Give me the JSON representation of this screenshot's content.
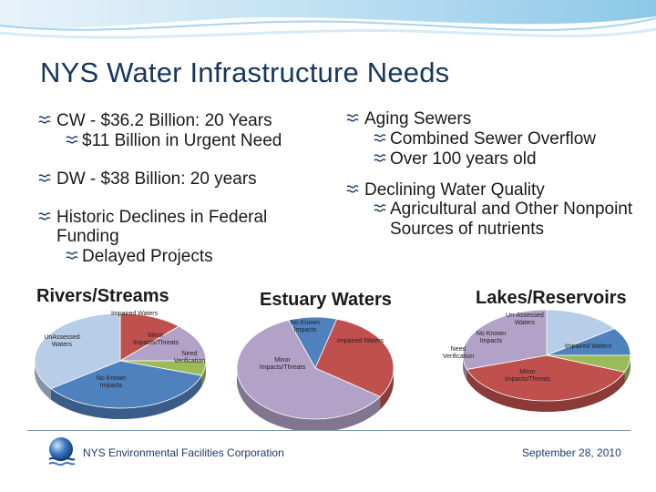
{
  "title": "NYS Water Infrastructure Needs",
  "left_column": {
    "items": [
      {
        "label": "CW - $36.2 Billion: 20 Years",
        "sub": [
          "$11 Billion in Urgent Need"
        ]
      },
      {
        "label": "DW - $38 Billion: 20 years",
        "sub": []
      },
      {
        "label": "Historic Declines in Federal Funding",
        "sub": [
          "Delayed Projects"
        ]
      }
    ]
  },
  "right_column": {
    "items": [
      {
        "label": "Aging Sewers",
        "sub": [
          "Combined Sewer Overflow",
          "Over 100 years old"
        ]
      },
      {
        "label": "Declining Water Quality",
        "sub": [
          "Agricultural and Other Nonpoint Sources of nutrients"
        ]
      }
    ]
  },
  "charts": {
    "rivers": {
      "title": "Rivers/Streams",
      "labels": {
        "impaired": "Impaired Waters",
        "minor": "Minor Impacts/Threats",
        "need": "Need Verification",
        "noknown": "No Known Impacts",
        "unassessed": "UnAssessed Waters"
      }
    },
    "estuary": {
      "title": "Estuary Waters",
      "labels": {
        "noknown": "No Known Impacts",
        "impaired": "Impaired Waters",
        "minor": "Minor Impacts/Threats"
      }
    },
    "lakes": {
      "title": "Lakes/Reservoirs",
      "labels": {
        "unassessed": "Un-Assessed Waters",
        "noknown": "No Known Impacts",
        "need": "Need Verification",
        "impaired": "Impaired Waters",
        "minor": "Minor Impacts/Threats"
      }
    }
  },
  "chart_data": [
    {
      "type": "pie",
      "title": "Rivers/Streams",
      "categories": [
        "Impaired Waters",
        "Minor Impacts/Threats",
        "Need Verification",
        "No Known Impacts",
        "UnAssessed Waters"
      ],
      "values": [
        12,
        13,
        5,
        35,
        35
      ]
    },
    {
      "type": "pie",
      "title": "Estuary Waters",
      "categories": [
        "No Known Impacts",
        "Impaired Waters",
        "Minor Impacts/Threats"
      ],
      "values": [
        10,
        30,
        60
      ]
    },
    {
      "type": "pie",
      "title": "Lakes/Reservoirs",
      "categories": [
        "Un-Assessed Waters",
        "No Known Impacts",
        "Need Verification",
        "Impaired Waters",
        "Minor Impacts/Threats"
      ],
      "values": [
        15,
        10,
        6,
        39,
        30
      ]
    }
  ],
  "footer": {
    "org": "NYS Environmental Facilities Corporation",
    "date": "September 28, 2010"
  },
  "colors": {
    "title": "#17365d",
    "impaired": "#c0504d",
    "minor": "#b3a2c7",
    "need": "#9bbb59",
    "noknown": "#4f81bd",
    "unassessed": "#b7cde8",
    "bullet": "#17365d"
  }
}
